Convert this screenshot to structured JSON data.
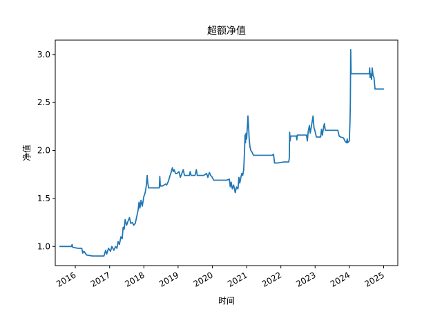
{
  "chart_data": {
    "type": "line",
    "title": "超额净值",
    "xlabel": "时间",
    "ylabel": "净值",
    "xlim": [
      "2015-06-01",
      "2025-06-01"
    ],
    "ylim": [
      0.8,
      3.15
    ],
    "x_ticks": [
      "2016",
      "2017",
      "2018",
      "2019",
      "2020",
      "2021",
      "2022",
      "2023",
      "2024",
      "2025"
    ],
    "y_ticks": [
      "1.0",
      "1.5",
      "2.0",
      "2.5",
      "3.0"
    ],
    "grid": false,
    "line_color": "#1f77b4",
    "series": [
      {
        "name": "",
        "points": [
          [
            "2015-07-20",
            1.0
          ],
          [
            "2015-10-01",
            1.0
          ],
          [
            "2015-11-20",
            1.0
          ],
          [
            "2015-11-28",
            1.02
          ],
          [
            "2015-12-05",
            0.99
          ],
          [
            "2016-02-01",
            0.98
          ],
          [
            "2016-03-10",
            0.98
          ],
          [
            "2016-03-20",
            0.93
          ],
          [
            "2016-04-01",
            0.95
          ],
          [
            "2016-05-01",
            0.91
          ],
          [
            "2016-07-01",
            0.9
          ],
          [
            "2016-09-01",
            0.9
          ],
          [
            "2016-10-01",
            0.9
          ],
          [
            "2016-11-01",
            0.9
          ],
          [
            "2016-11-20",
            0.96
          ],
          [
            "2016-12-01",
            0.92
          ],
          [
            "2016-12-20",
            0.98
          ],
          [
            "2017-01-10",
            0.95
          ],
          [
            "2017-01-25",
            1.0
          ],
          [
            "2017-02-15",
            0.96
          ],
          [
            "2017-03-05",
            1.0
          ],
          [
            "2017-03-20",
            0.98
          ],
          [
            "2017-04-01",
            1.05
          ],
          [
            "2017-04-15",
            1.02
          ],
          [
            "2017-05-01",
            1.1
          ],
          [
            "2017-05-15",
            1.08
          ],
          [
            "2017-05-25",
            1.2
          ],
          [
            "2017-06-05",
            1.18
          ],
          [
            "2017-06-15",
            1.28
          ],
          [
            "2017-07-01",
            1.22
          ],
          [
            "2017-07-15",
            1.26
          ],
          [
            "2017-08-01",
            1.3
          ],
          [
            "2017-08-15",
            1.24
          ],
          [
            "2017-09-01",
            1.25
          ],
          [
            "2017-09-15",
            1.22
          ],
          [
            "2017-10-01",
            1.24
          ],
          [
            "2017-10-15",
            1.3
          ],
          [
            "2017-11-01",
            1.38
          ],
          [
            "2017-11-10",
            1.46
          ],
          [
            "2017-11-20",
            1.4
          ],
          [
            "2017-12-01",
            1.48
          ],
          [
            "2017-12-15",
            1.42
          ],
          [
            "2018-01-01",
            1.52
          ],
          [
            "2018-01-15",
            1.56
          ],
          [
            "2018-01-25",
            1.62
          ],
          [
            "2018-02-05",
            1.74
          ],
          [
            "2018-02-12",
            1.66
          ],
          [
            "2018-02-20",
            1.61
          ],
          [
            "2018-03-15",
            1.61
          ],
          [
            "2018-05-01",
            1.61
          ],
          [
            "2018-06-15",
            1.61
          ],
          [
            "2018-06-20",
            1.73
          ],
          [
            "2018-06-25",
            1.63
          ],
          [
            "2018-07-20",
            1.63
          ],
          [
            "2018-08-20",
            1.65
          ],
          [
            "2018-09-01",
            1.64
          ],
          [
            "2018-09-20",
            1.68
          ],
          [
            "2018-10-01",
            1.72
          ],
          [
            "2018-10-15",
            1.76
          ],
          [
            "2018-11-01",
            1.82
          ],
          [
            "2018-11-10",
            1.78
          ],
          [
            "2018-11-20",
            1.8
          ],
          [
            "2018-12-05",
            1.76
          ],
          [
            "2018-12-20",
            1.76
          ],
          [
            "2019-01-10",
            1.78
          ],
          [
            "2019-01-25",
            1.72
          ],
          [
            "2019-02-10",
            1.76
          ],
          [
            "2019-02-25",
            1.8
          ],
          [
            "2019-03-10",
            1.74
          ],
          [
            "2019-04-01",
            1.74
          ],
          [
            "2019-05-01",
            1.74
          ],
          [
            "2019-05-10",
            1.78
          ],
          [
            "2019-05-20",
            1.74
          ],
          [
            "2019-07-01",
            1.74
          ],
          [
            "2019-07-15",
            1.8
          ],
          [
            "2019-07-25",
            1.74
          ],
          [
            "2019-09-01",
            1.74
          ],
          [
            "2019-10-01",
            1.74
          ],
          [
            "2019-11-01",
            1.76
          ],
          [
            "2019-11-15",
            1.72
          ],
          [
            "2019-12-01",
            1.77
          ],
          [
            "2019-12-15",
            1.74
          ],
          [
            "2020-01-01",
            1.72
          ],
          [
            "2020-01-15",
            1.69
          ],
          [
            "2020-03-01",
            1.69
          ],
          [
            "2020-06-01",
            1.69
          ],
          [
            "2020-07-01",
            1.7
          ],
          [
            "2020-07-10",
            1.62
          ],
          [
            "2020-07-20",
            1.67
          ],
          [
            "2020-08-01",
            1.6
          ],
          [
            "2020-08-15",
            1.64
          ],
          [
            "2020-09-01",
            1.56
          ],
          [
            "2020-09-15",
            1.62
          ],
          [
            "2020-10-01",
            1.6
          ],
          [
            "2020-10-10",
            1.72
          ],
          [
            "2020-10-20",
            1.66
          ],
          [
            "2020-11-01",
            1.72
          ],
          [
            "2020-11-10",
            1.76
          ],
          [
            "2020-11-20",
            1.74
          ],
          [
            "2020-12-01",
            1.8
          ],
          [
            "2020-12-10",
            2.0
          ],
          [
            "2020-12-15",
            2.16
          ],
          [
            "2020-12-20",
            2.08
          ],
          [
            "2020-12-25",
            2.18
          ],
          [
            "2021-01-01",
            2.12
          ],
          [
            "2021-01-10",
            2.26
          ],
          [
            "2021-01-15",
            2.36
          ],
          [
            "2021-01-22",
            2.24
          ],
          [
            "2021-01-28",
            2.12
          ],
          [
            "2021-02-05",
            2.04
          ],
          [
            "2021-02-15",
            2.0
          ],
          [
            "2021-03-01",
            1.98
          ],
          [
            "2021-03-15",
            1.95
          ],
          [
            "2021-04-01",
            1.95
          ],
          [
            "2021-06-01",
            1.95
          ],
          [
            "2021-08-01",
            1.95
          ],
          [
            "2021-10-01",
            1.95
          ],
          [
            "2021-10-15",
            1.96
          ],
          [
            "2021-10-25",
            1.87
          ],
          [
            "2021-12-01",
            1.87
          ],
          [
            "2022-02-01",
            1.88
          ],
          [
            "2022-03-01",
            1.88
          ],
          [
            "2022-03-25",
            1.88
          ],
          [
            "2022-04-01",
            1.92
          ],
          [
            "2022-04-05",
            2.19
          ],
          [
            "2022-04-10",
            2.1
          ],
          [
            "2022-04-15",
            2.15
          ],
          [
            "2022-06-01",
            2.15
          ],
          [
            "2022-06-15",
            2.15
          ],
          [
            "2022-06-20",
            2.11
          ],
          [
            "2022-06-25",
            2.16
          ],
          [
            "2022-08-01",
            2.16
          ],
          [
            "2022-10-01",
            2.16
          ],
          [
            "2022-10-10",
            2.1
          ],
          [
            "2022-10-20",
            2.2
          ],
          [
            "2022-11-01",
            2.26
          ],
          [
            "2022-11-10",
            2.18
          ],
          [
            "2022-12-01",
            2.3
          ],
          [
            "2022-12-10",
            2.36
          ],
          [
            "2022-12-20",
            2.24
          ],
          [
            "2023-01-01",
            2.2
          ],
          [
            "2023-01-15",
            2.14
          ],
          [
            "2023-02-01",
            2.14
          ],
          [
            "2023-03-01",
            2.14
          ],
          [
            "2023-03-10",
            2.22
          ],
          [
            "2023-03-20",
            2.16
          ],
          [
            "2023-04-01",
            2.24
          ],
          [
            "2023-04-10",
            2.28
          ],
          [
            "2023-04-20",
            2.21
          ],
          [
            "2023-06-01",
            2.21
          ],
          [
            "2023-08-01",
            2.21
          ],
          [
            "2023-09-01",
            2.21
          ],
          [
            "2023-09-15",
            2.15
          ],
          [
            "2023-10-01",
            2.14
          ],
          [
            "2023-11-01",
            2.13
          ],
          [
            "2023-11-15",
            2.1
          ],
          [
            "2023-12-01",
            2.08
          ],
          [
            "2023-12-10",
            2.12
          ],
          [
            "2023-12-15",
            2.08
          ],
          [
            "2024-01-01",
            2.1
          ],
          [
            "2024-01-08",
            2.3
          ],
          [
            "2024-01-12",
            2.5
          ],
          [
            "2024-01-16",
            3.05
          ],
          [
            "2024-01-20",
            2.8
          ],
          [
            "2024-03-01",
            2.8
          ],
          [
            "2024-05-01",
            2.8
          ],
          [
            "2024-07-01",
            2.8
          ],
          [
            "2024-08-01",
            2.8
          ],
          [
            "2024-08-05",
            2.86
          ],
          [
            "2024-08-10",
            2.76
          ],
          [
            "2024-08-15",
            2.8
          ],
          [
            "2024-08-25",
            2.74
          ],
          [
            "2024-09-01",
            2.86
          ],
          [
            "2024-09-10",
            2.78
          ],
          [
            "2024-09-20",
            2.76
          ],
          [
            "2024-10-01",
            2.64
          ],
          [
            "2024-12-31",
            2.64
          ]
        ]
      }
    ]
  }
}
